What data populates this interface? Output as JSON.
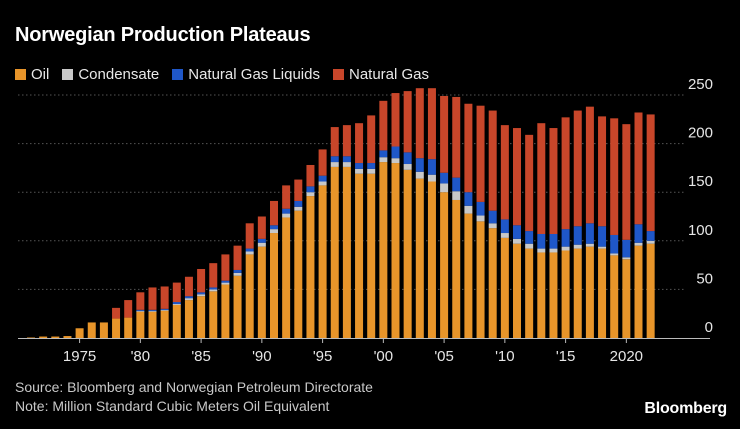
{
  "chart_data": {
    "type": "bar",
    "stacked": true,
    "title": "Norwegian Production Plateaus",
    "colors": {
      "Oil": "#E8952A",
      "Condensate": "#C8C8C8",
      "Natural Gas Liquids": "#1F57C8",
      "Natural Gas": "#C8462A",
      "grid": "#555555",
      "axis": "#bbbbbb"
    },
    "x": [
      1971,
      1972,
      1973,
      1974,
      1975,
      1976,
      1977,
      1978,
      1979,
      1980,
      1981,
      1982,
      1983,
      1984,
      1985,
      1986,
      1987,
      1988,
      1989,
      1990,
      1991,
      1992,
      1993,
      1994,
      1995,
      1996,
      1997,
      1998,
      1999,
      2000,
      2001,
      2002,
      2003,
      2004,
      2005,
      2006,
      2007,
      2008,
      2009,
      2010,
      2011,
      2012,
      2013,
      2014,
      2015,
      2016,
      2017,
      2018,
      2019,
      2020,
      2021,
      2022
    ],
    "x_ticks": [
      {
        "x": 1975,
        "label": "1975"
      },
      {
        "x": 1980,
        "label": "'80"
      },
      {
        "x": 1985,
        "label": "'85"
      },
      {
        "x": 1990,
        "label": "'90"
      },
      {
        "x": 1995,
        "label": "'95"
      },
      {
        "x": 2000,
        "label": "'00"
      },
      {
        "x": 2005,
        "label": "'05"
      },
      {
        "x": 2010,
        "label": "'10"
      },
      {
        "x": 2015,
        "label": "'15"
      },
      {
        "x": 2020,
        "label": "2020"
      }
    ],
    "series": [
      {
        "name": "Oil",
        "values": [
          0.5,
          1.5,
          1.5,
          2,
          10,
          16,
          16,
          20,
          21,
          27,
          27,
          28,
          34,
          39,
          43,
          48,
          55,
          64,
          86,
          94,
          108,
          124,
          131,
          146,
          157,
          176,
          176,
          169,
          169,
          181,
          180,
          173,
          164,
          161,
          150,
          142,
          128,
          120,
          113,
          103,
          97,
          92,
          88,
          88,
          90,
          92,
          94,
          92,
          85,
          81,
          95,
          97
        ]
      },
      {
        "name": "Condensate",
        "values": [
          0,
          0,
          0,
          0,
          0,
          0,
          0,
          0,
          0,
          1,
          1,
          1,
          1,
          2,
          2,
          2,
          2,
          3,
          3,
          4,
          4,
          4,
          4,
          4,
          4,
          5,
          5,
          5,
          5,
          5,
          5,
          6,
          7,
          7,
          9,
          9,
          8,
          6,
          5,
          5,
          5,
          5,
          4,
          4,
          4,
          4,
          3,
          2,
          2,
          2,
          3,
          3
        ]
      },
      {
        "name": "Natural Gas Liquids",
        "values": [
          0,
          0,
          0,
          0,
          0,
          0,
          0,
          0,
          0,
          1,
          1,
          1,
          2,
          2,
          2,
          2,
          2,
          3,
          3,
          4,
          4,
          5,
          6,
          6,
          6,
          6,
          6,
          6,
          6,
          7,
          12,
          12,
          14,
          16,
          11,
          14,
          14,
          14,
          13,
          14,
          14,
          13,
          15,
          15,
          18,
          19,
          21,
          21,
          19,
          18,
          19,
          10
        ]
      },
      {
        "name": "Natural Gas",
        "values": [
          0,
          0,
          0,
          0,
          0,
          0,
          0,
          11,
          18,
          18,
          23,
          23,
          20,
          20,
          24,
          25,
          27,
          25,
          26,
          23,
          25,
          24,
          22,
          22,
          27,
          30,
          32,
          41,
          49,
          51,
          55,
          63,
          72,
          73,
          79,
          83,
          91,
          99,
          103,
          97,
          100,
          99,
          114,
          109,
          115,
          119,
          120,
          113,
          120,
          119,
          115,
          120
        ]
      }
    ],
    "ylim": [
      0,
      250
    ],
    "yticks": [
      0,
      50,
      100,
      150,
      200,
      250
    ],
    "source": "Source: Bloomberg and Norwegian Petroleum Directorate",
    "note": "Note: Million Standard Cubic Meters Oil Equivalent",
    "brand": "Bloomberg"
  }
}
